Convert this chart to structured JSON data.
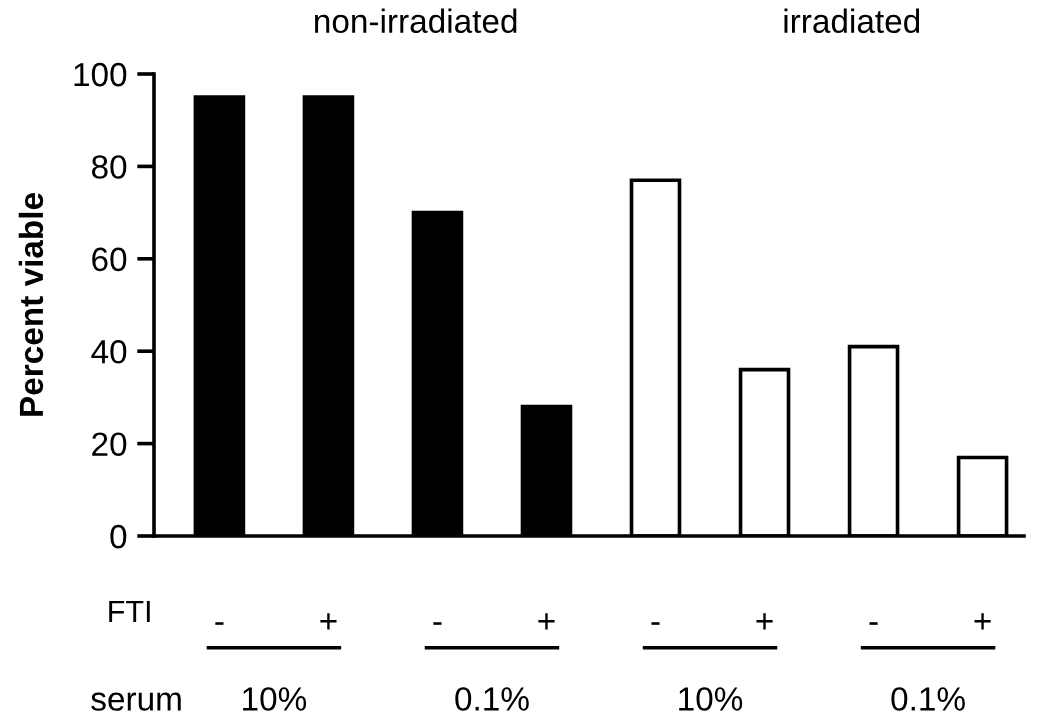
{
  "chart_data": {
    "type": "bar",
    "ylabel": "Percent viable",
    "categories": [
      "-",
      "+",
      "-",
      "+",
      "-",
      "+",
      "-",
      "+"
    ],
    "values": [
      95,
      95,
      70,
      28,
      77,
      36,
      41,
      17
    ],
    "colors": [
      "#000000",
      "#000000",
      "#000000",
      "#000000",
      "#ffffff",
      "#ffffff",
      "#ffffff",
      "#ffffff"
    ],
    "ylim": [
      0,
      100
    ],
    "yticks": [
      0,
      20,
      40,
      60,
      80,
      100
    ],
    "grid": false,
    "legend": false,
    "annotations": [
      "non-irradiated",
      "irradiated",
      "FTI",
      "serum",
      "10%",
      "0.1%",
      "10%",
      "0.1%"
    ]
  }
}
